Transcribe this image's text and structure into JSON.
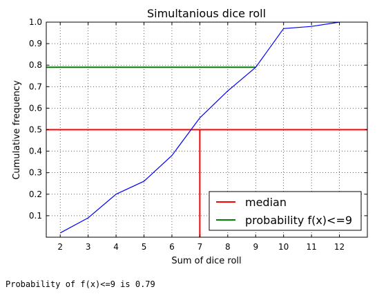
{
  "chart_data": {
    "type": "line",
    "title": "Simultanious dice roll",
    "xlabel": "Sum of dice roll",
    "ylabel": "Cumulative frequency",
    "xlim": [
      1.5,
      13.0
    ],
    "ylim": [
      0.0,
      1.0
    ],
    "xticks": [
      "2",
      "3",
      "4",
      "5",
      "6",
      "7",
      "8",
      "9",
      "10",
      "11",
      "12"
    ],
    "yticks": [
      "0.1",
      "0.2",
      "0.3",
      "0.4",
      "0.5",
      "0.6",
      "0.7",
      "0.8",
      "0.9",
      "1.0"
    ],
    "grid": true,
    "legend_position": "bottom-right",
    "series": [
      {
        "color": "#0000ff",
        "x": [
          2,
          3,
          4,
          5,
          6,
          7,
          8,
          9,
          10,
          11,
          12
        ],
        "y": [
          0.02,
          0.09,
          0.2,
          0.26,
          0.38,
          0.555,
          0.68,
          0.79,
          0.97,
          0.98,
          1.0
        ]
      }
    ],
    "reference_lines": [
      {
        "name": "median",
        "color": "#ff0000",
        "value": 0.5,
        "x": 7
      },
      {
        "name": "probability f(x)<=9",
        "color": "#008000",
        "value": 0.79,
        "x": 9
      }
    ]
  },
  "console": {
    "text": "Probability of f(x)<=9 is 0.79"
  }
}
